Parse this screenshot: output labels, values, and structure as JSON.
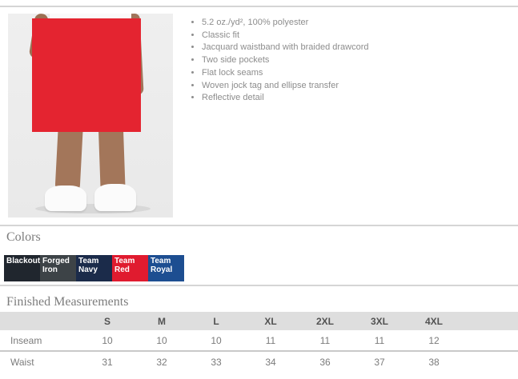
{
  "product": {
    "features": [
      "5.2 oz./yd², 100% polyester",
      "Classic fit",
      "Jacquard waistband with braided drawcord",
      "Two side pockets",
      "Flat lock seams",
      "Woven jock tag and ellipse transfer",
      "Reflective detail"
    ]
  },
  "colors": {
    "title": "Colors",
    "swatches": [
      {
        "label": "Blackout",
        "hex": "#20262e"
      },
      {
        "label": "Forged Iron",
        "hex": "#3d4347"
      },
      {
        "label": "Team Navy",
        "hex": "#1b2b4a"
      },
      {
        "label": "Team Red",
        "hex": "#e01b2f"
      },
      {
        "label": "Team Royal",
        "hex": "#1d4e91"
      }
    ]
  },
  "measurements": {
    "title": "Finished Measurements",
    "sizes": [
      "S",
      "M",
      "L",
      "XL",
      "2XL",
      "3XL",
      "4XL"
    ],
    "rows": [
      {
        "label": "Inseam",
        "values": [
          "10",
          "10",
          "10",
          "11",
          "11",
          "11",
          "12"
        ]
      },
      {
        "label": "Waist",
        "values": [
          "31",
          "32",
          "33",
          "34",
          "36",
          "37",
          "38"
        ]
      }
    ]
  }
}
